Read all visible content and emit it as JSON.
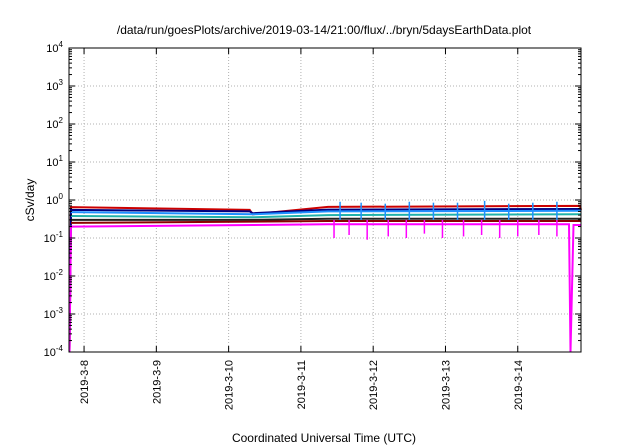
{
  "chart_data": {
    "type": "line",
    "title": "/data/run/goesPlots/archive/2019-03-14/21:00/flux/../bryn/5daysEarthData.plot",
    "xlabel": "Coordinated Universal Time (UTC)",
    "ylabel": "cSv/day",
    "yscale": "log",
    "ylim": [
      0.0001,
      10000
    ],
    "xlim": [
      "2019-03-07T19:00",
      "2019-03-14T21:00"
    ],
    "grid": true,
    "legend": "none",
    "x_ticks": [
      {
        "x": "2019-03-08T00:00",
        "label": "2019-3-8"
      },
      {
        "x": "2019-03-09T00:00",
        "label": "2019-3-9"
      },
      {
        "x": "2019-03-10T00:00",
        "label": "2019-3-10"
      },
      {
        "x": "2019-03-11T00:00",
        "label": "2019-3-11"
      },
      {
        "x": "2019-03-12T00:00",
        "label": "2019-3-12"
      },
      {
        "x": "2019-03-13T00:00",
        "label": "2019-3-13"
      },
      {
        "x": "2019-03-14T00:00",
        "label": "2019-3-14"
      }
    ],
    "y_ticks": [
      {
        "y": 0.0001,
        "base": "10",
        "exp": "-4"
      },
      {
        "y": 0.001,
        "base": "10",
        "exp": "-3"
      },
      {
        "y": 0.01,
        "base": "10",
        "exp": "-2"
      },
      {
        "y": 0.1,
        "base": "10",
        "exp": "-1"
      },
      {
        "y": 1,
        "base": "10",
        "exp": "0"
      },
      {
        "y": 10,
        "base": "10",
        "exp": "1"
      },
      {
        "y": 100,
        "base": "10",
        "exp": "2"
      },
      {
        "y": 1000,
        "base": "10",
        "exp": "3"
      },
      {
        "y": 10000,
        "base": "10",
        "exp": "4"
      }
    ],
    "series": [
      {
        "color": "#cc0000",
        "points": [
          [
            "2019-03-07T19:10",
            0.0001
          ],
          [
            "2019-03-07T19:40",
            0.65
          ],
          [
            "2019-03-10T07:00",
            0.55
          ],
          [
            "2019-03-10T08:00",
            0.42
          ],
          [
            "2019-03-11T09:00",
            0.66
          ],
          [
            "2019-03-14T20:40",
            0.7
          ],
          [
            "2019-03-14T21:00",
            0.55
          ]
        ]
      },
      {
        "color": "#000080",
        "points": [
          [
            "2019-03-07T19:10",
            0.0001
          ],
          [
            "2019-03-07T19:40",
            0.55
          ],
          [
            "2019-03-10T07:00",
            0.5
          ],
          [
            "2019-03-10T08:00",
            0.45
          ],
          [
            "2019-03-11T09:00",
            0.56
          ],
          [
            "2019-03-14T21:00",
            0.58
          ]
        ]
      },
      {
        "color": "#1e90ff",
        "points": [
          [
            "2019-03-07T19:40",
            0.48
          ],
          [
            "2019-03-10T08:00",
            0.42
          ],
          [
            "2019-03-11T09:00",
            0.5
          ],
          [
            "2019-03-14T21:00",
            0.52
          ]
        ]
      },
      {
        "color": "#20b2aa",
        "points": [
          [
            "2019-03-07T19:40",
            0.38
          ],
          [
            "2019-03-10T08:00",
            0.35
          ],
          [
            "2019-03-11T09:00",
            0.4
          ],
          [
            "2019-03-14T21:00",
            0.42
          ]
        ]
      },
      {
        "color": "#222222",
        "points": [
          [
            "2019-03-07T19:40",
            0.3
          ],
          [
            "2019-03-10T08:00",
            0.3
          ],
          [
            "2019-03-11T09:00",
            0.32
          ],
          [
            "2019-03-14T21:00",
            0.32
          ]
        ]
      },
      {
        "color": "#8b0000",
        "points": [
          [
            "2019-03-07T19:40",
            0.25
          ],
          [
            "2019-03-10T08:00",
            0.27
          ],
          [
            "2019-03-11T09:00",
            0.28
          ],
          [
            "2019-03-14T21:00",
            0.28
          ]
        ]
      },
      {
        "color": "#ff00ff",
        "points": [
          [
            "2019-03-07T19:10",
            0.0001
          ],
          [
            "2019-03-07T19:40",
            0.2
          ],
          [
            "2019-03-10T08:00",
            0.22
          ],
          [
            "2019-03-11T09:00",
            0.23
          ],
          [
            "2019-03-14T17:00",
            0.23
          ],
          [
            "2019-03-14T17:30",
            0.0001
          ],
          [
            "2019-03-14T18:30",
            0.22
          ],
          [
            "2019-03-14T21:00",
            0.22
          ]
        ]
      }
    ],
    "spikes": [
      {
        "color": "#ff00ff",
        "x": [
          "2019-03-11T11:00",
          "2019-03-11T16:00",
          "2019-03-11T22:00",
          "2019-03-12T05:00",
          "2019-03-12T11:00",
          "2019-03-12T17:00",
          "2019-03-12T23:00",
          "2019-03-13T06:00",
          "2019-03-13T12:00",
          "2019-03-13T18:00",
          "2019-03-14T00:00",
          "2019-03-14T07:00",
          "2019-03-14T13:00"
        ],
        "y": [
          0.1,
          0.12,
          0.09,
          0.11,
          0.1,
          0.13,
          0.1,
          0.11,
          0.12,
          0.1,
          0.11,
          0.12,
          0.11
        ]
      },
      {
        "color": "#1e90ff",
        "x": [
          "2019-03-11T13:00",
          "2019-03-11T20:00",
          "2019-03-12T04:00",
          "2019-03-12T12:00",
          "2019-03-12T20:00",
          "2019-03-13T04:00",
          "2019-03-13T13:00",
          "2019-03-13T21:00",
          "2019-03-14T05:00",
          "2019-03-14T13:00"
        ],
        "y": [
          0.9,
          0.85,
          0.8,
          0.9,
          0.85,
          0.85,
          0.95,
          0.8,
          0.85,
          0.9
        ]
      }
    ]
  }
}
